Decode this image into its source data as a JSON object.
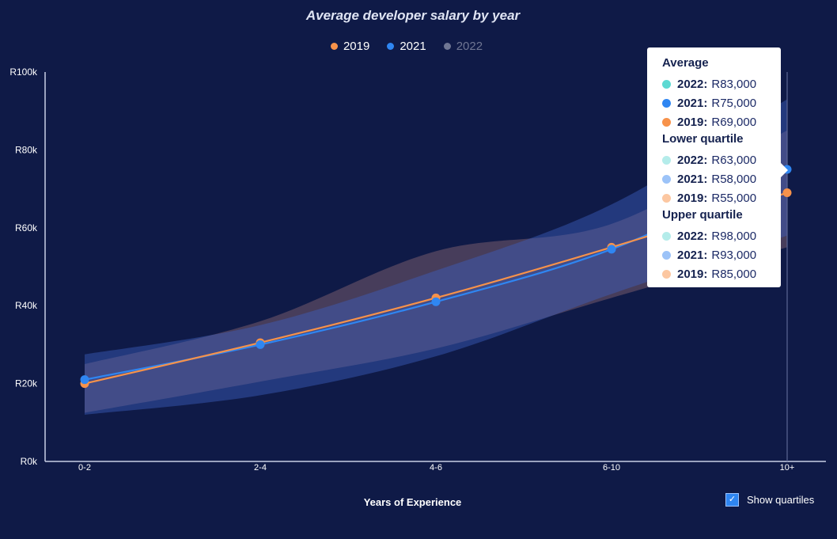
{
  "chart_data": {
    "type": "line",
    "title": "Average developer salary by year",
    "xlabel": "Years of Experience",
    "ylabel": "",
    "categories": [
      "0-2",
      "2-4",
      "4-6",
      "6-10",
      "10+"
    ],
    "y_ticks": [
      "R0k",
      "R20k",
      "R40k",
      "R60k",
      "R80k",
      "R100k"
    ],
    "ylim": [
      0,
      100000
    ],
    "grid": false,
    "legend_position": "top-center",
    "series": [
      {
        "name": "2019",
        "color": "#f7924a",
        "visible": true,
        "values": [
          20000,
          30500,
          42000,
          55000,
          69000
        ],
        "lower_quartile": [
          12500,
          20500,
          29000,
          42000,
          55000
        ],
        "upper_quartile": [
          25000,
          36000,
          54000,
          61000,
          85000
        ]
      },
      {
        "name": "2021",
        "color": "#2f86f2",
        "visible": true,
        "values": [
          21000,
          30000,
          41000,
          54500,
          75000
        ],
        "lower_quartile": [
          12000,
          17000,
          27000,
          43000,
          58000
        ],
        "upper_quartile": [
          27500,
          35000,
          49000,
          66000,
          93000
        ]
      },
      {
        "name": "2022",
        "color": "#6f7693",
        "visible": false,
        "values": [
          null,
          null,
          null,
          null,
          83000
        ],
        "lower_quartile": [
          null,
          null,
          null,
          null,
          63000
        ],
        "upper_quartile": [
          null,
          null,
          null,
          null,
          98000
        ]
      }
    ]
  },
  "tooltip": {
    "category": "10+",
    "sections": [
      {
        "heading": "Average",
        "rows": [
          {
            "year": "2022:",
            "value": "R83,000",
            "color": "#5dd9d2"
          },
          {
            "year": "2021:",
            "value": "R75,000",
            "color": "#2f86f2"
          },
          {
            "year": "2019:",
            "value": "R69,000",
            "color": "#f7924a"
          }
        ]
      },
      {
        "heading": "Lower quartile",
        "rows": [
          {
            "year": "2022:",
            "value": "R63,000",
            "color": "#b4ecea"
          },
          {
            "year": "2021:",
            "value": "R58,000",
            "color": "#9cc3f8"
          },
          {
            "year": "2019:",
            "value": "R55,000",
            "color": "#fcc7a1"
          }
        ]
      },
      {
        "heading": "Upper quartile",
        "rows": [
          {
            "year": "2022:",
            "value": "R98,000",
            "color": "#b4ecea"
          },
          {
            "year": "2021:",
            "value": "R93,000",
            "color": "#9cc3f8"
          },
          {
            "year": "2019:",
            "value": "R85,000",
            "color": "#fcc7a1"
          }
        ]
      }
    ]
  },
  "controls": {
    "show_quartiles_label": "Show quartiles",
    "show_quartiles_checked": true
  },
  "colors": {
    "background": "#0f1a47",
    "axis": "#c9cfe6"
  }
}
